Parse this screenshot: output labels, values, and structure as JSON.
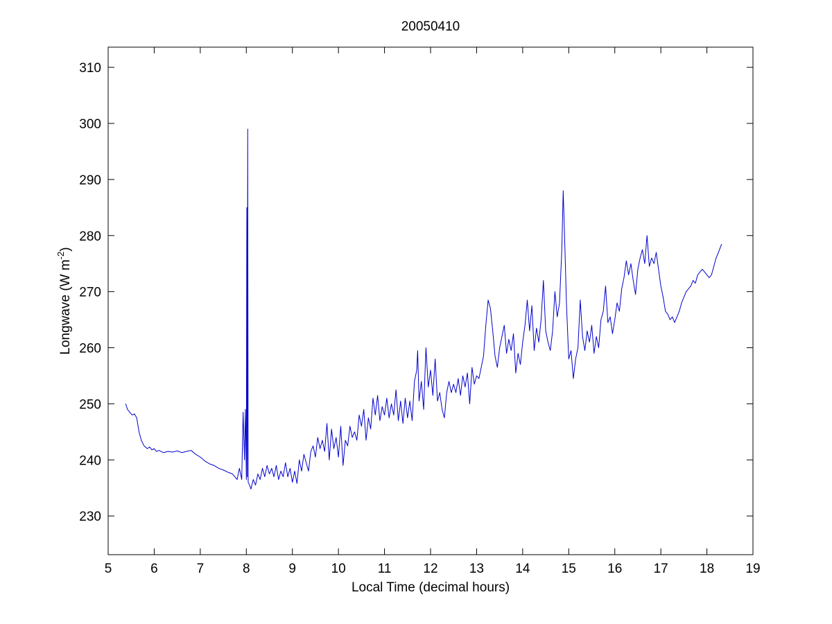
{
  "chart_data": {
    "type": "line",
    "title": "20050410",
    "xlabel": "Local Time (decimal hours)",
    "ylabel": {
      "text": "Longwave (W m",
      "superscript": "-2",
      "suffix": ")"
    },
    "xlim": [
      5,
      19
    ],
    "ylim": [
      223.1,
      313.6
    ],
    "xticks": [
      5,
      6,
      7,
      8,
      9,
      10,
      11,
      12,
      13,
      14,
      15,
      16,
      17,
      18,
      19
    ],
    "yticks": [
      230,
      240,
      250,
      260,
      270,
      280,
      290,
      300,
      310
    ],
    "grid": false,
    "x": [
      5.38,
      5.42,
      5.47,
      5.52,
      5.57,
      5.62,
      5.67,
      5.72,
      5.78,
      5.85,
      5.9,
      5.95,
      6.0,
      6.05,
      6.1,
      6.2,
      6.3,
      6.4,
      6.5,
      6.6,
      6.7,
      6.8,
      6.9,
      7.0,
      7.1,
      7.2,
      7.3,
      7.4,
      7.5,
      7.6,
      7.7,
      7.75,
      7.8,
      7.85,
      7.9,
      7.93,
      7.96,
      7.98,
      8.0,
      8.01,
      8.02,
      8.03,
      8.04,
      8.07,
      8.1,
      8.15,
      8.2,
      8.25,
      8.3,
      8.35,
      8.4,
      8.45,
      8.5,
      8.55,
      8.6,
      8.65,
      8.7,
      8.75,
      8.8,
      8.85,
      8.9,
      8.95,
      9.0,
      9.05,
      9.1,
      9.15,
      9.2,
      9.25,
      9.3,
      9.35,
      9.4,
      9.45,
      9.5,
      9.55,
      9.6,
      9.65,
      9.7,
      9.75,
      9.8,
      9.85,
      9.9,
      9.95,
      10.0,
      10.05,
      10.1,
      10.15,
      10.2,
      10.25,
      10.3,
      10.35,
      10.4,
      10.45,
      10.5,
      10.55,
      10.6,
      10.65,
      10.7,
      10.75,
      10.8,
      10.85,
      10.9,
      10.95,
      11.0,
      11.05,
      11.1,
      11.15,
      11.2,
      11.25,
      11.3,
      11.35,
      11.4,
      11.45,
      11.5,
      11.55,
      11.6,
      11.65,
      11.7,
      11.72,
      11.75,
      11.8,
      11.85,
      11.9,
      11.95,
      12.0,
      12.05,
      12.1,
      12.15,
      12.2,
      12.25,
      12.3,
      12.35,
      12.4,
      12.45,
      12.5,
      12.55,
      12.6,
      12.65,
      12.7,
      12.75,
      12.8,
      12.85,
      12.9,
      12.95,
      13.0,
      13.05,
      13.1,
      13.15,
      13.2,
      13.25,
      13.3,
      13.35,
      13.4,
      13.45,
      13.5,
      13.55,
      13.6,
      13.65,
      13.7,
      13.75,
      13.8,
      13.85,
      13.9,
      13.95,
      14.0,
      14.05,
      14.1,
      14.15,
      14.2,
      14.25,
      14.3,
      14.35,
      14.4,
      14.45,
      14.5,
      14.55,
      14.6,
      14.65,
      14.7,
      14.75,
      14.8,
      14.85,
      14.88,
      14.92,
      14.95,
      15.0,
      15.05,
      15.1,
      15.15,
      15.2,
      15.25,
      15.3,
      15.35,
      15.4,
      15.45,
      15.5,
      15.55,
      15.6,
      15.65,
      15.7,
      15.75,
      15.8,
      15.85,
      15.9,
      15.95,
      16.0,
      16.05,
      16.1,
      16.15,
      16.2,
      16.25,
      16.3,
      16.35,
      16.4,
      16.45,
      16.5,
      16.55,
      16.6,
      16.65,
      16.7,
      16.75,
      16.8,
      16.85,
      16.9,
      16.95,
      17.0,
      17.05,
      17.1,
      17.15,
      17.2,
      17.25,
      17.3,
      17.35,
      17.4,
      17.45,
      17.5,
      17.55,
      17.6,
      17.65,
      17.7,
      17.75,
      17.8,
      17.85,
      17.9,
      17.95,
      18.0,
      18.05,
      18.1,
      18.15,
      18.2,
      18.25,
      18.32
    ],
    "series": [
      {
        "color": "#0000cc",
        "values": [
          250,
          249,
          248.5,
          248,
          248.2,
          247.5,
          245,
          243.5,
          242.5,
          242,
          242.3,
          241.8,
          242,
          241.5,
          241.7,
          241.3,
          241.5,
          241.4,
          241.6,
          241.3,
          241.5,
          241.7,
          241,
          240.5,
          239.8,
          239.3,
          239,
          238.5,
          238.2,
          237.8,
          237.5,
          237,
          236.5,
          238.5,
          236.5,
          248.5,
          240,
          249,
          236.5,
          285,
          237,
          299,
          236,
          235.5,
          234.8,
          236.5,
          235.5,
          237.5,
          236.5,
          238.5,
          237,
          239,
          237.5,
          238.5,
          237,
          239,
          236.5,
          238,
          237,
          239.5,
          237,
          238.5,
          236,
          238,
          235.8,
          240,
          238,
          241,
          239.5,
          238,
          241.5,
          242.5,
          240.5,
          244,
          242,
          243.5,
          241.5,
          246.5,
          240,
          245.5,
          242,
          244,
          240.5,
          246,
          239,
          243.5,
          242.5,
          246,
          244,
          245,
          243.5,
          248,
          246,
          249,
          243.5,
          247.5,
          245.5,
          251,
          248,
          251.5,
          247,
          249.5,
          248,
          251,
          247.5,
          250,
          248,
          252.5,
          247,
          250.5,
          246.5,
          251,
          247.5,
          250.5,
          247,
          254,
          256,
          259.5,
          250.5,
          254,
          249,
          260,
          253,
          256,
          251.5,
          258,
          250.5,
          252,
          249,
          247.5,
          252,
          254,
          252,
          253.5,
          252,
          254.5,
          251.5,
          255,
          253,
          255.5,
          250,
          256.5,
          253.5,
          255,
          254.5,
          256.5,
          258.5,
          264,
          268.5,
          267,
          263,
          258.5,
          256.5,
          260,
          262,
          264,
          259,
          261.5,
          259.5,
          262.5,
          255.5,
          259,
          257,
          261,
          264,
          268.5,
          263,
          267.5,
          259.5,
          263.5,
          261,
          265,
          272,
          263,
          261,
          259.5,
          263,
          270,
          265.5,
          268,
          277.5,
          288,
          277,
          268,
          258,
          259.5,
          254.5,
          258,
          260,
          268.5,
          262,
          259.5,
          263,
          261,
          264,
          259,
          262,
          260,
          265,
          266.5,
          271,
          264.5,
          265.5,
          262.5,
          265,
          268,
          266.5,
          270.5,
          272.5,
          275.5,
          273,
          275,
          272,
          269.5,
          274,
          276,
          277.5,
          275,
          280,
          274.5,
          276,
          275,
          277,
          274,
          271,
          269,
          266.5,
          266,
          265,
          265.5,
          264.5,
          265.5,
          266.5,
          268,
          269,
          270,
          270.5,
          271,
          272,
          271.5,
          273,
          273.5,
          274,
          273.5,
          273,
          272.5,
          273,
          274.5,
          276,
          277,
          278.5
        ]
      }
    ]
  }
}
